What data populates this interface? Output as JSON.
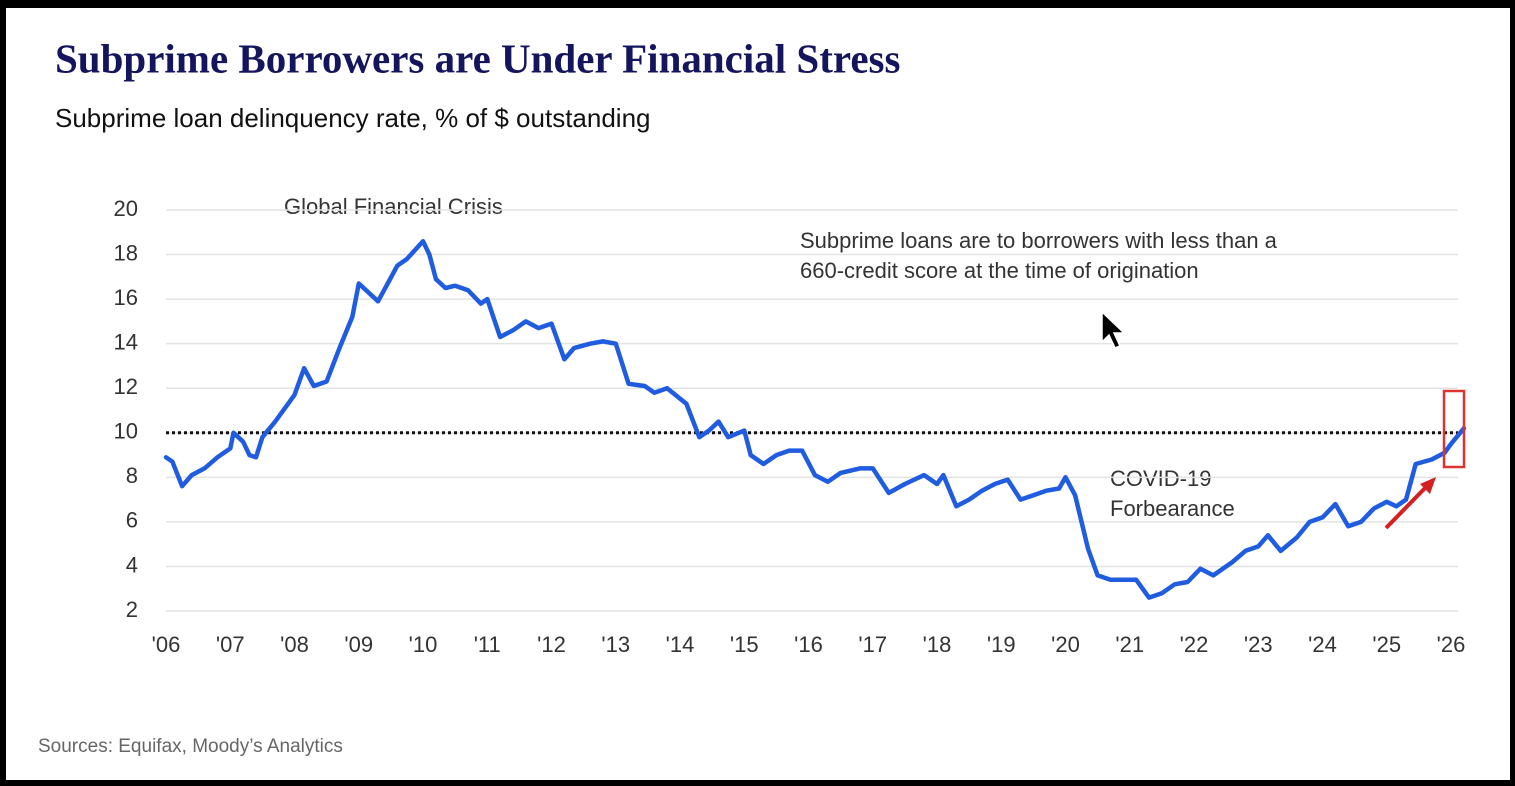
{
  "chart_data": {
    "type": "line",
    "title": "Subprime Borrowers are Under Financial Stress",
    "subtitle": "Subprime loan delinquency rate, % of $ outstanding",
    "annotations": [
      "Global Financial Crisis",
      "Subprime loans are to borrowers with less than a",
      "660-credit score at the time of origination",
      "COVID-19",
      "Forbearance"
    ],
    "source": "Sources: Equifax, Moody’s Analytics",
    "color": "#1f5ce0",
    "reference_y": 10,
    "grid": true,
    "xlim": [
      2006,
      2026.3
    ],
    "ylim": [
      2,
      20
    ],
    "yticks": [
      2,
      4,
      6,
      8,
      10,
      12,
      14,
      16,
      18,
      20
    ],
    "xticks": [
      {
        "value": 2006,
        "label": "'06"
      },
      {
        "value": 2007,
        "label": "'07"
      },
      {
        "value": 2008,
        "label": "'08"
      },
      {
        "value": 2009,
        "label": "'09"
      },
      {
        "value": 2010,
        "label": "'10"
      },
      {
        "value": 2011,
        "label": "'11"
      },
      {
        "value": 2012,
        "label": "'12"
      },
      {
        "value": 2013,
        "label": "'13"
      },
      {
        "value": 2014,
        "label": "'14"
      },
      {
        "value": 2015,
        "label": "'15"
      },
      {
        "value": 2016,
        "label": "'16"
      },
      {
        "value": 2017,
        "label": "'17"
      },
      {
        "value": 2018,
        "label": "'18"
      },
      {
        "value": 2019,
        "label": "'19"
      },
      {
        "value": 2020,
        "label": "'20"
      },
      {
        "value": 2021,
        "label": "'21"
      },
      {
        "value": 2022,
        "label": "'22"
      },
      {
        "value": 2023,
        "label": "'23"
      },
      {
        "value": 2024,
        "label": "'24"
      },
      {
        "value": 2025,
        "label": "'25"
      },
      {
        "value": 2026,
        "label": "'26"
      }
    ],
    "x": [
      2006.0,
      2006.1,
      2006.25,
      2006.4,
      2006.6,
      2006.8,
      2007.0,
      2007.05,
      2007.2,
      2007.3,
      2007.4,
      2007.5,
      2007.7,
      2008.0,
      2008.15,
      2008.3,
      2008.5,
      2008.7,
      2008.9,
      2009.0,
      2009.15,
      2009.3,
      2009.45,
      2009.6,
      2009.75,
      2010.0,
      2010.1,
      2010.2,
      2010.35,
      2010.5,
      2010.7,
      2010.9,
      2011.0,
      2011.2,
      2011.4,
      2011.6,
      2011.8,
      2012.0,
      2012.2,
      2012.35,
      2012.6,
      2012.8,
      2013.0,
      2013.2,
      2013.45,
      2013.6,
      2013.8,
      2014.1,
      2014.3,
      2014.45,
      2014.6,
      2014.75,
      2015.0,
      2015.1,
      2015.3,
      2015.5,
      2015.7,
      2015.9,
      2016.1,
      2016.3,
      2016.5,
      2016.8,
      2017.0,
      2017.25,
      2017.5,
      2017.8,
      2018.0,
      2018.1,
      2018.3,
      2018.5,
      2018.7,
      2018.9,
      2019.1,
      2019.3,
      2019.5,
      2019.7,
      2019.9,
      2020.0,
      2020.15,
      2020.35,
      2020.5,
      2020.7,
      2020.9,
      2021.1,
      2021.3,
      2021.5,
      2021.7,
      2021.9,
      2022.1,
      2022.3,
      2022.6,
      2022.8,
      2023.0,
      2023.15,
      2023.35,
      2023.6,
      2023.8,
      2024.0,
      2024.2,
      2024.4,
      2024.6,
      2024.8,
      2025.0,
      2025.15,
      2025.3,
      2025.45,
      2025.7,
      2025.9,
      2026.0,
      2026.2
    ],
    "values": [
      8.9,
      8.7,
      7.6,
      8.1,
      8.4,
      8.9,
      9.3,
      10.0,
      9.6,
      9.0,
      8.9,
      9.8,
      10.5,
      11.7,
      12.9,
      12.1,
      12.3,
      13.8,
      15.2,
      16.7,
      16.3,
      15.9,
      16.7,
      17.5,
      17.8,
      18.6,
      18.0,
      16.9,
      16.5,
      16.6,
      16.4,
      15.8,
      16.0,
      14.3,
      14.6,
      15.0,
      14.7,
      14.9,
      13.3,
      13.8,
      14.0,
      14.1,
      14.0,
      12.2,
      12.1,
      11.8,
      12.0,
      11.3,
      9.8,
      10.1,
      10.5,
      9.8,
      10.1,
      9.0,
      8.6,
      9.0,
      9.2,
      9.2,
      8.1,
      7.8,
      8.2,
      8.4,
      8.4,
      7.3,
      7.7,
      8.1,
      7.7,
      8.1,
      6.7,
      7.0,
      7.4,
      7.7,
      7.9,
      7.0,
      7.2,
      7.4,
      7.5,
      8.0,
      7.2,
      4.8,
      3.6,
      3.4,
      3.4,
      3.4,
      2.6,
      2.8,
      3.2,
      3.3,
      3.9,
      3.6,
      4.2,
      4.7,
      4.9,
      5.4,
      4.7,
      5.3,
      6.0,
      6.2,
      6.8,
      5.8,
      6.0,
      6.6,
      6.9,
      6.7,
      7.0,
      8.6,
      8.8,
      9.1,
      9.5,
      10.2
    ]
  }
}
